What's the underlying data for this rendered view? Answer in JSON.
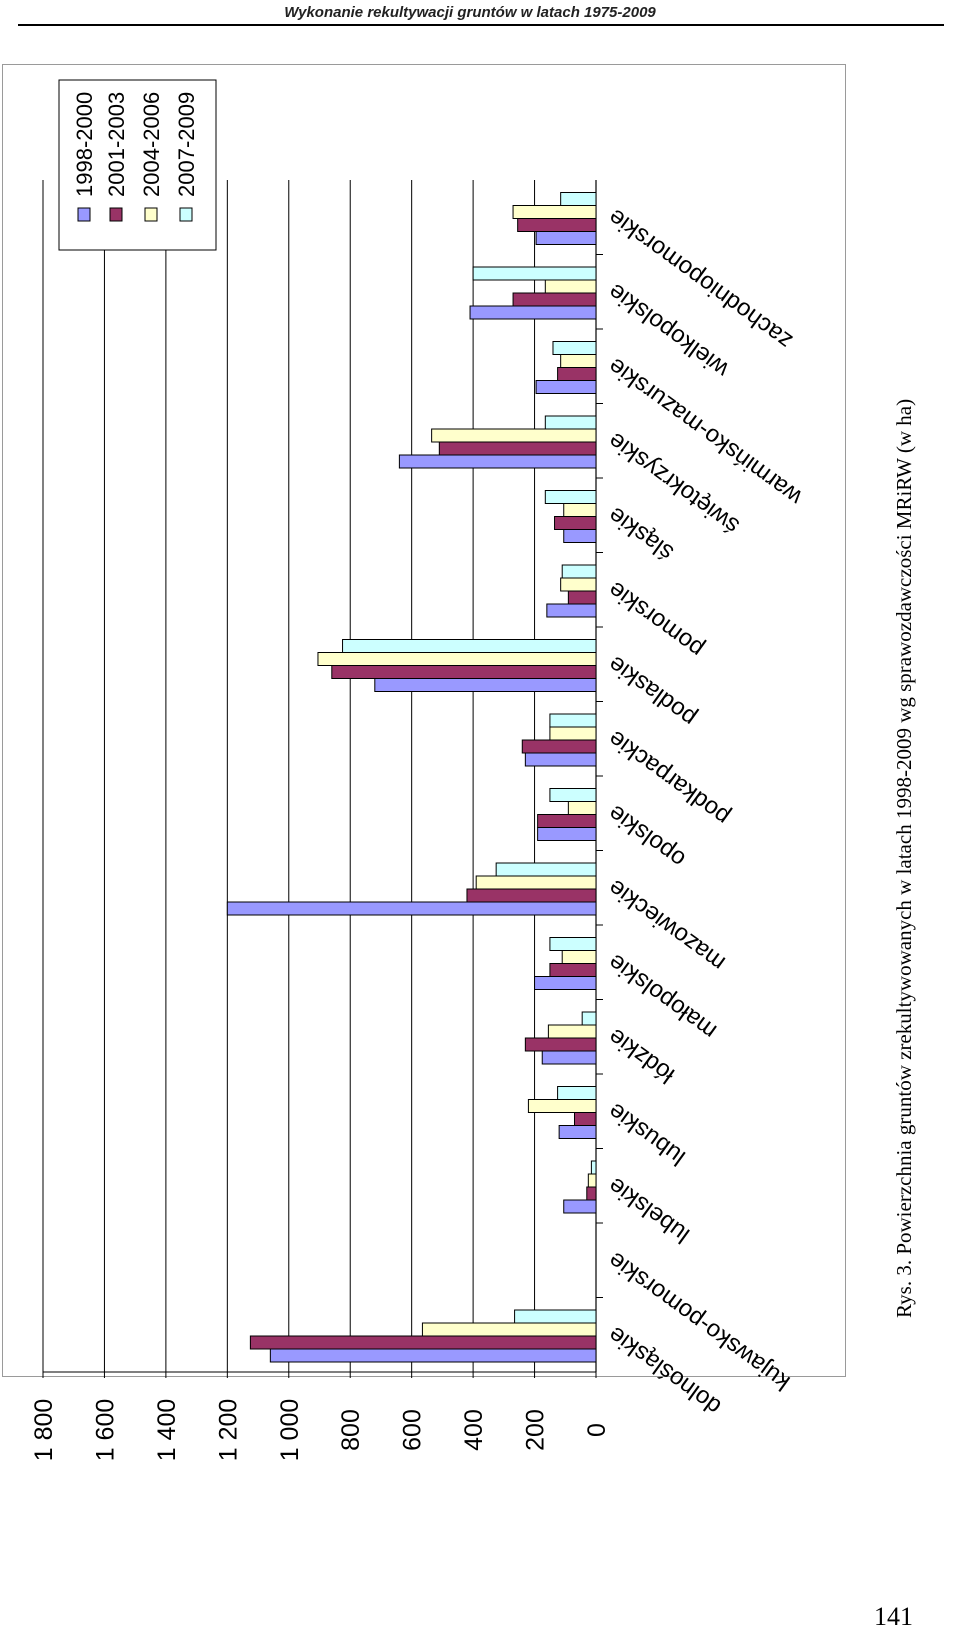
{
  "header": {
    "title": "Wykonanie rekultywacji gruntów w latach 1975-2009"
  },
  "caption": "Rys. 3. Powierzchnia gruntów zrekultywowanych w latach 1998-2009 wg sprawozdawczości MRiRW (w ha)",
  "page_number": "141",
  "chart_data": {
    "type": "bar",
    "orientation": "rotated 90° (value axis runs top-to-bottom of page)",
    "categories": [
      "dolnośląskie",
      "kujawsko-pomorskie",
      "lubelskie",
      "lubuskie",
      "łódzkie",
      "małopolskie",
      "mazowieckie",
      "opolskie",
      "podkarpackie",
      "podlaskie",
      "pomorskie",
      "śląskie",
      "świętokrzyskie",
      "warmińsko-mazurskie",
      "wielkopolskie",
      "zachodniopomorskie"
    ],
    "series": [
      {
        "name": "1998-2000",
        "color": "#9999ff",
        "values": [
          1060,
          0,
          105,
          120,
          175,
          200,
          1200,
          190,
          230,
          720,
          160,
          105,
          640,
          195,
          410,
          195
        ]
      },
      {
        "name": "2001-2003",
        "color": "#993366",
        "values": [
          1125,
          0,
          30,
          70,
          230,
          150,
          420,
          190,
          240,
          860,
          90,
          135,
          510,
          125,
          270,
          255
        ]
      },
      {
        "name": "2004-2006",
        "color": "#ffffcc",
        "values": [
          565,
          0,
          25,
          220,
          155,
          110,
          390,
          90,
          150,
          905,
          115,
          105,
          535,
          115,
          165,
          270
        ]
      },
      {
        "name": "2007-2009",
        "color": "#ccffff",
        "values": [
          265,
          0,
          15,
          125,
          45,
          150,
          325,
          150,
          150,
          825,
          110,
          165,
          165,
          140,
          400,
          115
        ]
      }
    ],
    "y_ticks": [
      "0",
      "200",
      "400",
      "600",
      "800",
      "1 000",
      "1 200",
      "1 400",
      "1 600",
      "1 800"
    ],
    "ylim": [
      0,
      1800
    ],
    "grid": true,
    "legend_position": "top-left (rotated)"
  }
}
